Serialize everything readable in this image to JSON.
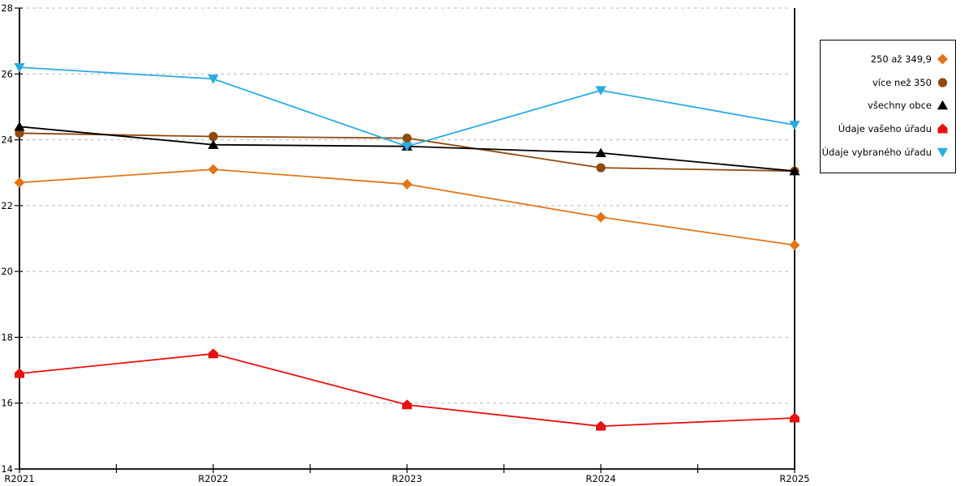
{
  "chart_data": {
    "type": "line",
    "title": "",
    "xlabel": "",
    "ylabel": "",
    "categories": [
      "R2021",
      "R2022",
      "R2023",
      "R2024",
      "R2025"
    ],
    "ylim": [
      14,
      28
    ],
    "y_ticks": [
      14,
      16,
      18,
      20,
      22,
      24,
      26,
      28
    ],
    "grid": "horizontal-dashed",
    "legend_position": "outside-right",
    "axis_color": "#000000",
    "grid_color": "#b9b9b9",
    "series": [
      {
        "name": "250 až 349,9",
        "marker": "diamond",
        "color": "#e2751a",
        "values": [
          22.7,
          23.1,
          22.65,
          21.65,
          20.8
        ]
      },
      {
        "name": "více než 350",
        "marker": "circle",
        "color": "#8f4a0d",
        "values": [
          24.2,
          24.1,
          24.05,
          23.15,
          23.05
        ]
      },
      {
        "name": "všechny obce",
        "marker": "triangle-up",
        "color": "#000000",
        "values": [
          24.4,
          23.85,
          23.8,
          23.6,
          23.05
        ]
      },
      {
        "name": "Údaje vašeho úřadu",
        "marker": "pentagon-up",
        "color": "#e81010",
        "values": [
          16.9,
          17.5,
          15.95,
          15.3,
          15.55
        ]
      },
      {
        "name": "Údaje vybraného úřadu",
        "marker": "triangle-down",
        "color": "#29abe2",
        "values": [
          26.2,
          25.85,
          23.8,
          25.5,
          24.45
        ]
      }
    ]
  }
}
